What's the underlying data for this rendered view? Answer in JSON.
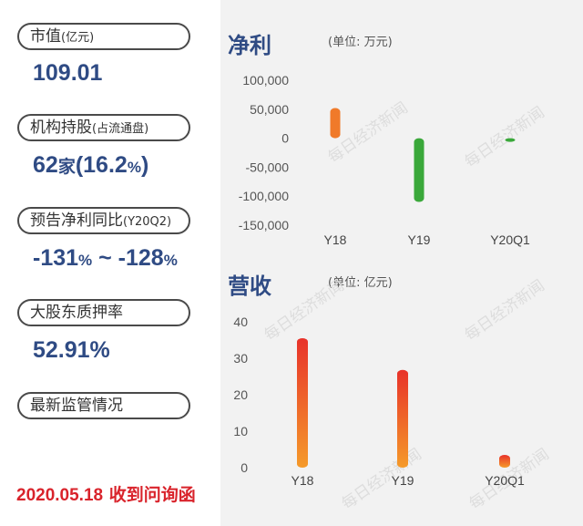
{
  "sidebar": {
    "market_cap": {
      "label": "市值",
      "sub": "(亿元)",
      "value": "109.01"
    },
    "institutions": {
      "label": "机构持股",
      "sub": "(占流通盘)",
      "count": "62",
      "unit": "家",
      "open": "(",
      "pct": "16.2",
      "pct_sign": "%",
      "close": ")"
    },
    "forecast": {
      "label": "预告净利同比",
      "sub": "(Y20Q2)",
      "low": "-131",
      "low_unit": "%",
      "sep": " ~ ",
      "high": "-128",
      "high_unit": "%"
    },
    "pledge": {
      "label": "大股东质押率",
      "value": "52.91%"
    },
    "regulation": {
      "label": "最新监管情况"
    }
  },
  "footer": {
    "date": "2020.05.18",
    "text": " 收到问询函"
  },
  "chart_data": [
    {
      "type": "bar",
      "title": "净利",
      "unit": "(单位: 万元)",
      "categories": [
        "Y18",
        "Y19",
        "Y20Q1"
      ],
      "values": [
        52000,
        -110000,
        -5000
      ],
      "ylim": [
        -150000,
        100000
      ],
      "yticks": [
        100000,
        50000,
        0,
        -50000,
        -100000,
        -150000
      ],
      "ytick_labels": [
        "100,000",
        "50,000",
        "0",
        "-50,000",
        "-100,000",
        "-150,000"
      ],
      "colors": {
        "positive": "#f07a2a",
        "negative": "#3aa83a"
      },
      "grid": false
    },
    {
      "type": "bar",
      "title": "营收",
      "unit": "(单位: 亿元)",
      "categories": [
        "Y18",
        "Y19",
        "Y20Q1"
      ],
      "values": [
        35.5,
        26.8,
        3.5
      ],
      "ylim": [
        0,
        40
      ],
      "yticks": [
        40,
        30,
        20,
        10,
        0
      ],
      "ytick_labels": [
        "40",
        "30",
        "20",
        "10",
        "0"
      ],
      "colors": {
        "top": "#e8322a",
        "bottom": "#f59a2a"
      },
      "grid": false
    }
  ],
  "watermark": "每日经济新闻"
}
